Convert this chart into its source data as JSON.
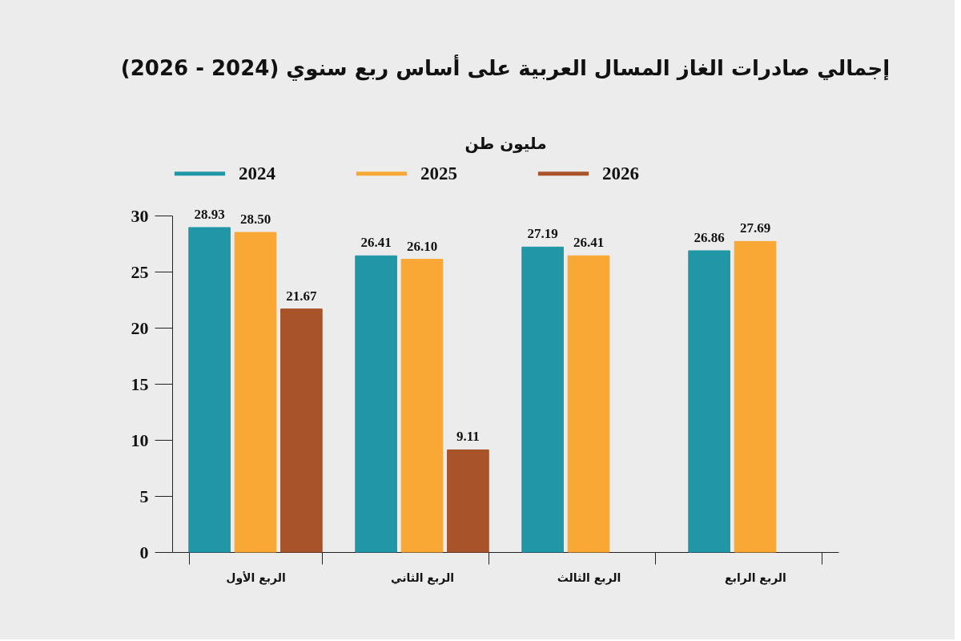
{
  "chart_data": {
    "type": "bar",
    "title": "إجمالي صادرات الغاز المسال العربية على أساس ربع سنوي (2024 - 2026)",
    "ylabel": "مليون طن",
    "categories": [
      "الربع الأول",
      "الربع الثاني",
      "الربع الثالث",
      "الربع الرابع"
    ],
    "series": [
      {
        "name": "2024",
        "color": "#2196a6",
        "values": [
          28.93,
          26.41,
          27.19,
          26.86
        ],
        "value_labels": [
          "28.93",
          "26.41",
          "27.19",
          "26.86"
        ]
      },
      {
        "name": "2025",
        "color": "#f9a735",
        "values": [
          28.5,
          26.1,
          26.41,
          27.69
        ],
        "value_labels": [
          "28.50",
          "26.10",
          "26.41",
          "27.69"
        ]
      },
      {
        "name": "2026",
        "color": "#a8532a",
        "values": [
          21.67,
          9.11,
          null,
          null
        ],
        "value_labels": [
          "21.67",
          "9.11",
          null,
          null
        ]
      }
    ],
    "ylim": [
      0,
      30
    ],
    "yticks": [
      0,
      5,
      10,
      15,
      20,
      25,
      30
    ],
    "grid": false,
    "legend": "top"
  }
}
